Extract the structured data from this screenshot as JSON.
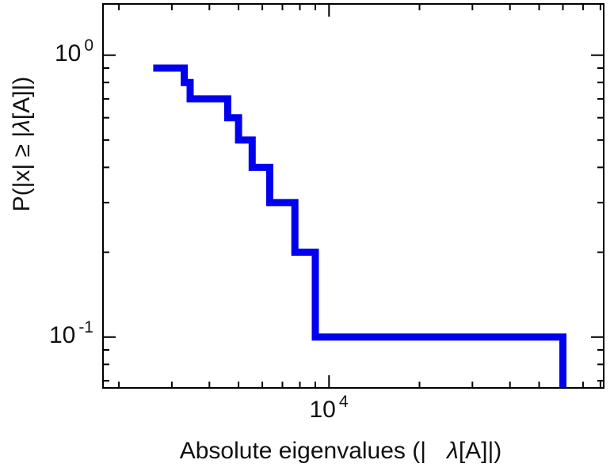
{
  "figure": {
    "background": "#ffffff"
  },
  "chart_data": {
    "type": "line",
    "subtype": "empirical-ccdf-step",
    "title": "",
    "x_scale": "log",
    "y_scale": "log",
    "xlim": [
      1770,
      82000
    ],
    "ylim": [
      0.066,
      1.52
    ],
    "eigenvalues": [
      2600,
      3300,
      3450,
      4600,
      5000,
      5550,
      6350,
      7700,
      9000,
      60000
    ],
    "ccdf_levels": [
      0.9,
      0.8,
      0.7,
      0.6,
      0.5,
      0.4,
      0.3,
      0.2,
      0.1
    ],
    "x_major_ticks": [
      10000
    ],
    "y_major_ticks": [
      1,
      0.1
    ],
    "x_tick_labels": [
      {
        "mantissa": "10",
        "exponent": "4"
      }
    ],
    "y_tick_labels": [
      {
        "mantissa": "10",
        "exponent": "0"
      },
      {
        "mantissa": "10",
        "exponent": "-1"
      }
    ],
    "xlabel_prefix": "Absolute eigenvalues (|",
    "xlabel_math": "λ",
    "xlabel_suffix": "[A]|)",
    "ylabel_prefix": "P(|x| ≥ |",
    "ylabel_math": "λ",
    "ylabel_suffix": "[A]|)",
    "line_color": "#0000ee",
    "line_width": 9,
    "frame_color": "#000000",
    "text_color": "#111111",
    "grid": false
  }
}
